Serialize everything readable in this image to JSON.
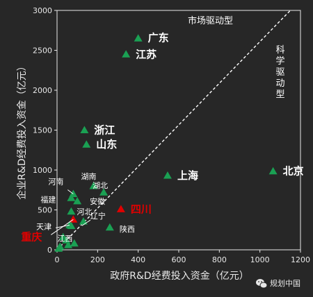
{
  "chart_data": {
    "type": "scatter",
    "xlabel": "政府R&D经费投入资金（亿元）",
    "ylabel": "企业R&D经费投入资金（亿元）",
    "xlim": [
      0,
      1200
    ],
    "ylim": [
      0,
      3000
    ],
    "xticks": [
      0,
      200,
      400,
      600,
      800,
      1000,
      1200
    ],
    "yticks": [
      0,
      500,
      1000,
      1500,
      2000,
      2500,
      3000
    ],
    "grid": false,
    "reference_line": {
      "from": [
        0,
        0
      ],
      "to": [
        1150,
        3000
      ],
      "style": "dashed"
    },
    "annotations": {
      "market": "市场驱动型",
      "science": "科学驱动型"
    },
    "points": [
      {
        "name": "广东",
        "x": 400,
        "y": 2650,
        "color": "#1aa053",
        "label_style": "big"
      },
      {
        "name": "江苏",
        "x": 340,
        "y": 2450,
        "color": "#1aa053",
        "label_style": "big"
      },
      {
        "name": "浙江",
        "x": 135,
        "y": 1500,
        "color": "#1aa053",
        "label_style": "big"
      },
      {
        "name": "山东",
        "x": 145,
        "y": 1320,
        "color": "#1aa053",
        "label_style": "big"
      },
      {
        "name": "北京",
        "x": 1065,
        "y": 985,
        "color": "#1aa053",
        "label_style": "big"
      },
      {
        "name": "上海",
        "x": 545,
        "y": 930,
        "color": "#1aa053",
        "label_style": "big"
      },
      {
        "name": "湖南",
        "x": 180,
        "y": 800,
        "color": "#1aa053",
        "label_style": "small"
      },
      {
        "name": "湖北",
        "x": 230,
        "y": 720,
        "color": "#1aa053",
        "label_style": "small"
      },
      {
        "name": "河南",
        "x": 80,
        "y": 700,
        "color": "#1aa053",
        "label_style": "small"
      },
      {
        "name": "福建",
        "x": 70,
        "y": 650,
        "color": "#1aa053",
        "label_style": "small"
      },
      {
        "name": "安徽",
        "x": 100,
        "y": 610,
        "color": "#1aa053",
        "label_style": "small"
      },
      {
        "name": "河北",
        "x": 70,
        "y": 480,
        "color": "#1aa053",
        "label_style": "small"
      },
      {
        "name": "四川",
        "x": 315,
        "y": 510,
        "color": "#e10000",
        "label_style": "red"
      },
      {
        "name": "重庆",
        "x": 80,
        "y": 380,
        "color": "#e10000",
        "label_style": "red"
      },
      {
        "name": "天津",
        "x": 62,
        "y": 310,
        "color": "#1aa053",
        "label_style": "small"
      },
      {
        "name": "辽宁",
        "x": 130,
        "y": 355,
        "color": "#1aa053",
        "label_style": "small"
      },
      {
        "name": "江西",
        "x": 70,
        "y": 300,
        "color": "#1aa053",
        "label_style": "small"
      },
      {
        "name": "陕西",
        "x": 260,
        "y": 280,
        "color": "#1aa053",
        "label_style": "small"
      },
      {
        "name": "",
        "x": 30,
        "y": 160,
        "color": "#1aa053",
        "label_style": "none"
      },
      {
        "name": "",
        "x": 45,
        "y": 120,
        "color": "#1aa053",
        "label_style": "none"
      },
      {
        "name": "",
        "x": 85,
        "y": 80,
        "color": "#1aa053",
        "label_style": "none"
      },
      {
        "name": "",
        "x": 55,
        "y": 60,
        "color": "#1aa053",
        "label_style": "none"
      },
      {
        "name": "",
        "x": 15,
        "y": 40,
        "color": "#1aa053",
        "label_style": "none"
      },
      {
        "name": "",
        "x": 8,
        "y": 15,
        "color": "#1aa053",
        "label_style": "none"
      }
    ]
  },
  "watermark": {
    "text": "规划中国",
    "icon": "wechat-icon"
  }
}
